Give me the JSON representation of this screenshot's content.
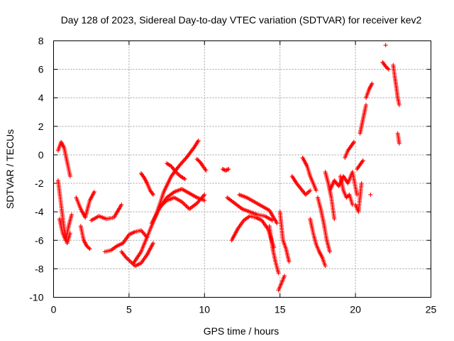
{
  "chart_data": {
    "type": "scatter",
    "title": "Day 128 of 2023, Sidereal Day-to-day VTEC variation (SDTVAR) for receiver kev2",
    "xlabel": "GPS time / hours",
    "ylabel": "SDTVAR / TECUs",
    "xlim": [
      0,
      25
    ],
    "ylim": [
      -10,
      8
    ],
    "xticks": [
      0,
      5,
      10,
      15,
      20,
      25
    ],
    "yticks": [
      -10,
      -8,
      -6,
      -4,
      -2,
      0,
      2,
      4,
      6,
      8
    ],
    "grid": true,
    "marker": "+",
    "color": "#ff0000",
    "series_segments": [
      {
        "name": "seg01",
        "x": [
          0.3,
          0.5,
          0.7,
          0.9,
          1.1
        ],
        "y": [
          0.3,
          0.9,
          0.5,
          -0.5,
          -1.5
        ]
      },
      {
        "name": "seg02",
        "x": [
          0.3,
          0.5,
          0.7,
          0.9,
          1.1
        ],
        "y": [
          -1.8,
          -3.5,
          -5.2,
          -6.2,
          -5.5
        ]
      },
      {
        "name": "seg03",
        "x": [
          0.4,
          0.6,
          0.8,
          1.0,
          1.2
        ],
        "y": [
          -4.5,
          -5.5,
          -6.0,
          -5.0,
          -4.2
        ]
      },
      {
        "name": "seg04",
        "x": [
          1.5,
          1.8,
          2.1,
          2.4,
          2.7
        ],
        "y": [
          -3.0,
          -3.8,
          -4.4,
          -3.2,
          -2.6
        ]
      },
      {
        "name": "seg05",
        "x": [
          1.8,
          2.0,
          2.2,
          2.4
        ],
        "y": [
          -5.0,
          -6.0,
          -6.4,
          -6.6
        ]
      },
      {
        "name": "seg06",
        "x": [
          2.5,
          3.0,
          3.5,
          4.0,
          4.5
        ],
        "y": [
          -4.6,
          -4.3,
          -4.5,
          -4.4,
          -3.5
        ]
      },
      {
        "name": "seg07",
        "x": [
          3.4,
          3.8,
          4.2,
          4.6,
          5.0,
          5.4,
          5.8,
          6.2
        ],
        "y": [
          -6.8,
          -6.7,
          -6.4,
          -6.2,
          -5.6,
          -5.4,
          -5.3,
          -5.8
        ]
      },
      {
        "name": "seg08",
        "x": [
          4.5,
          4.8,
          5.1,
          5.4,
          5.8,
          6.2,
          6.6
        ],
        "y": [
          -6.8,
          -7.2,
          -7.5,
          -7.8,
          -7.6,
          -7.0,
          -6.2
        ]
      },
      {
        "name": "seg09",
        "x": [
          5.3,
          5.8,
          6.3,
          6.8,
          7.3,
          7.8,
          8.3,
          8.8,
          9.3,
          9.6
        ],
        "y": [
          -7.6,
          -6.8,
          -5.5,
          -4.2,
          -2.6,
          -1.5,
          -0.8,
          -0.2,
          0.5,
          1.0
        ]
      },
      {
        "name": "seg10",
        "x": [
          5.8,
          6.0,
          6.2,
          6.4,
          6.6
        ],
        "y": [
          -1.3,
          -1.6,
          -2.0,
          -2.5,
          -2.8
        ]
      },
      {
        "name": "seg11",
        "x": [
          6.5,
          7.0,
          7.5,
          8.0,
          8.5,
          9.0,
          9.5,
          10.0
        ],
        "y": [
          -4.8,
          -3.8,
          -3.0,
          -2.6,
          -2.4,
          -2.7,
          -3.0,
          -3.2
        ]
      },
      {
        "name": "seg12",
        "x": [
          7.0,
          7.5,
          8.0,
          8.5,
          9.0,
          9.5,
          10.0
        ],
        "y": [
          -3.7,
          -3.2,
          -3.0,
          -3.3,
          -3.8,
          -3.4,
          -2.8
        ]
      },
      {
        "name": "seg13",
        "x": [
          7.5,
          7.8,
          8.1,
          8.4,
          8.7
        ],
        "y": [
          -0.6,
          -0.8,
          -1.2,
          -1.5,
          -1.7
        ]
      },
      {
        "name": "seg14",
        "x": [
          9.5,
          9.7,
          9.9,
          10.1
        ],
        "y": [
          -0.3,
          -0.5,
          -0.8,
          -1.1
        ]
      },
      {
        "name": "seg15",
        "x": [
          11.2,
          11.4,
          11.6
        ],
        "y": [
          -1.0,
          -1.1,
          -1.0
        ]
      },
      {
        "name": "seg16",
        "x": [
          11.5,
          12.0,
          12.5,
          13.0,
          13.5,
          14.0,
          14.5
        ],
        "y": [
          -3.0,
          -3.4,
          -3.8,
          -4.0,
          -4.2,
          -4.3,
          -4.6
        ]
      },
      {
        "name": "seg17",
        "x": [
          12.3,
          12.8,
          13.3,
          13.8,
          14.3,
          14.8
        ],
        "y": [
          -2.8,
          -3.0,
          -3.3,
          -3.6,
          -3.9,
          -4.8
        ]
      },
      {
        "name": "seg18",
        "x": [
          11.8,
          12.2,
          12.6,
          13.0,
          13.4,
          13.8,
          14.2,
          14.6
        ],
        "y": [
          -6.0,
          -5.2,
          -4.6,
          -4.3,
          -4.4,
          -4.6,
          -5.2,
          -6.5
        ]
      },
      {
        "name": "seg19",
        "x": [
          14.3,
          14.5,
          14.7,
          14.9
        ],
        "y": [
          -5.0,
          -6.5,
          -7.5,
          -8.3
        ]
      },
      {
        "name": "seg20",
        "x": [
          14.9,
          15.1,
          15.3
        ],
        "y": [
          -9.5,
          -9.0,
          -8.5
        ]
      },
      {
        "name": "seg21",
        "x": [
          15.0,
          15.2,
          15.4,
          15.6
        ],
        "y": [
          -4.0,
          -6.0,
          -6.6,
          -7.5
        ]
      },
      {
        "name": "seg22",
        "x": [
          15.8,
          16.1,
          16.4,
          16.7,
          17.0
        ],
        "y": [
          -1.5,
          -2.0,
          -2.4,
          -2.8,
          -2.5
        ]
      },
      {
        "name": "seg23",
        "x": [
          16.5,
          16.8,
          17.0,
          17.2,
          17.4
        ],
        "y": [
          -0.2,
          -0.8,
          -1.5,
          -2.0,
          -2.5
        ]
      },
      {
        "name": "seg24",
        "x": [
          17.0,
          17.2,
          17.4,
          17.6,
          17.8,
          18.0
        ],
        "y": [
          -4.5,
          -5.5,
          -6.3,
          -6.8,
          -7.2,
          -7.8
        ]
      },
      {
        "name": "seg25",
        "x": [
          17.5,
          17.7,
          17.9,
          18.1,
          18.3
        ],
        "y": [
          -3.0,
          -3.8,
          -4.8,
          -6.0,
          -6.8
        ]
      },
      {
        "name": "seg26",
        "x": [
          18.0,
          18.2,
          18.4,
          18.6
        ],
        "y": [
          -1.2,
          -2.0,
          -3.0,
          -4.5
        ]
      },
      {
        "name": "seg27",
        "x": [
          18.3,
          18.6,
          18.9,
          19.2,
          19.5,
          19.8,
          20.1
        ],
        "y": [
          -2.5,
          -1.8,
          -2.2,
          -1.5,
          -2.0,
          -1.2,
          -2.8
        ]
      },
      {
        "name": "seg28",
        "x": [
          19.0,
          19.2,
          19.4,
          19.6,
          19.8
        ],
        "y": [
          -1.5,
          -2.5,
          -3.0,
          -2.8,
          -3.5
        ]
      },
      {
        "name": "seg29",
        "x": [
          19.3,
          19.5,
          19.7,
          19.9
        ],
        "y": [
          -0.2,
          0.3,
          0.6,
          0.9
        ]
      },
      {
        "name": "seg30",
        "x": [
          20.0,
          20.2,
          20.4
        ],
        "y": [
          -3.5,
          -4.0,
          -2.0
        ]
      },
      {
        "name": "seg31",
        "x": [
          20.1,
          20.3,
          20.5
        ],
        "y": [
          -1.0,
          -0.7,
          -0.4
        ]
      },
      {
        "name": "seg32",
        "x": [
          20.3,
          20.5,
          20.7
        ],
        "y": [
          1.5,
          2.5,
          3.5
        ]
      },
      {
        "name": "seg33",
        "x": [
          20.7,
          20.9,
          21.1
        ],
        "y": [
          4.0,
          4.6,
          5.0
        ]
      },
      {
        "name": "seg34",
        "x": [
          21.8,
          22.0,
          22.2
        ],
        "y": [
          6.5,
          6.2,
          6.0
        ]
      },
      {
        "name": "seg35",
        "x": [
          22.0
        ],
        "y": [
          7.7
        ]
      },
      {
        "name": "seg36",
        "x": [
          22.5,
          22.6,
          22.7,
          22.8,
          22.9
        ],
        "y": [
          6.3,
          5.5,
          4.8,
          4.0,
          3.5
        ]
      },
      {
        "name": "seg37",
        "x": [
          22.8,
          22.9
        ],
        "y": [
          1.5,
          0.8
        ]
      },
      {
        "name": "seg38",
        "x": [
          21.0
        ],
        "y": [
          -2.8
        ]
      }
    ]
  }
}
